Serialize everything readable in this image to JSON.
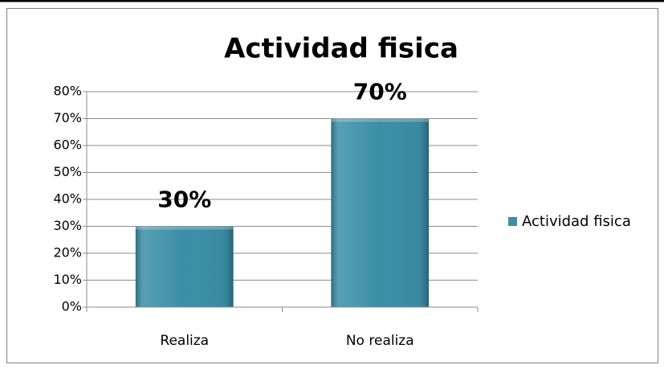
{
  "chart_data": {
    "type": "bar",
    "title": "Actividad fisica",
    "categories": [
      "Realiza",
      "No realiza"
    ],
    "series": [
      {
        "name": "Actividad fisica",
        "color": "#3a8ea6",
        "values": [
          30,
          70
        ],
        "value_labels": [
          "30%",
          "70%"
        ]
      }
    ],
    "ylim": [
      0,
      80
    ],
    "yticks": [
      {
        "value": 0,
        "label": "0%"
      },
      {
        "value": 10,
        "label": "10%"
      },
      {
        "value": 20,
        "label": "20%"
      },
      {
        "value": 30,
        "label": "30%"
      },
      {
        "value": 40,
        "label": "40%"
      },
      {
        "value": 50,
        "label": "50%"
      },
      {
        "value": 60,
        "label": "60%"
      },
      {
        "value": 70,
        "label": "70%"
      },
      {
        "value": 80,
        "label": "80%"
      }
    ],
    "grid": true,
    "legend": "right"
  }
}
